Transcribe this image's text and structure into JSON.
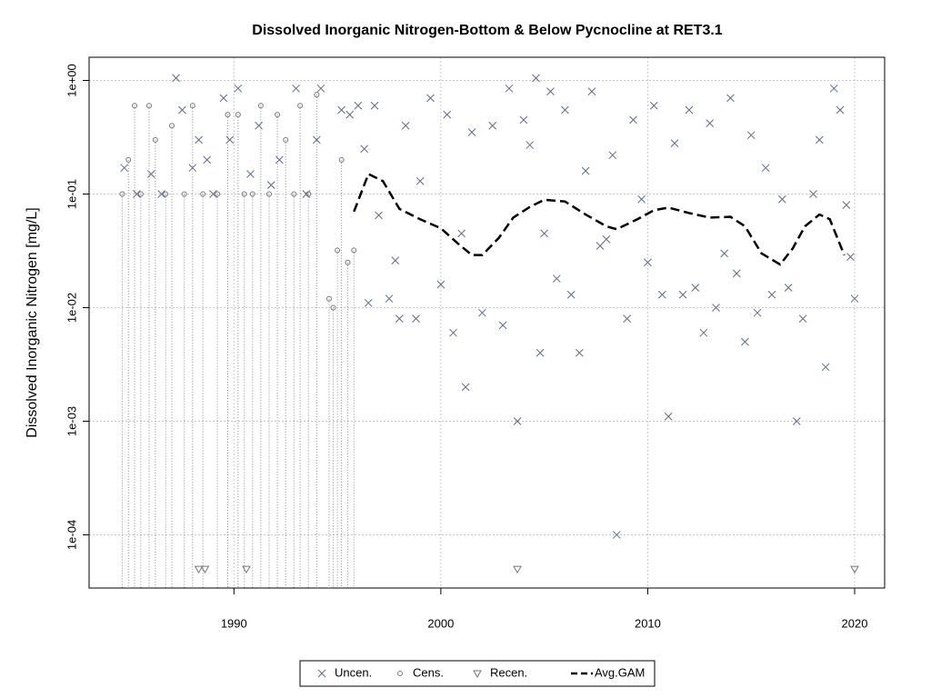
{
  "chart_data": {
    "type": "scatter",
    "title": "Dissolved Inorganic Nitrogen-Bottom & Below Pycnocline at RET3.1",
    "y_label": "Dissolved Inorganic Nitrogen [mg/L]",
    "xlim": [
      1983.0,
      2021.45
    ],
    "xticks": [
      1990,
      2000,
      2010,
      2020
    ],
    "ylim": [
      3.4e-05,
      1.6
    ],
    "log_y": true,
    "yticks": [
      {
        "value": 1,
        "label": "1e+00"
      },
      {
        "value": 0.1,
        "label": "1e-01"
      },
      {
        "value": 0.01,
        "label": "1e-02"
      },
      {
        "value": 0.001,
        "label": "1e-03"
      },
      {
        "value": 0.0001,
        "label": "1e-04"
      }
    ],
    "grid": true,
    "legend": "bottom",
    "series": [
      {
        "name": "Uncen.",
        "color": "#5f6b8c",
        "marker": "x",
        "x": [
          1984.7,
          1985.3,
          1986,
          1986.5,
          1987.2,
          1987.5,
          1988,
          1988.3,
          1988.7,
          1989,
          1989.5,
          1989.8,
          1990.2,
          1990.8,
          1991.2,
          1991.8,
          1992.2,
          1993,
          1993.5,
          1994,
          1994.2,
          1995.2,
          1995.6,
          1996,
          1996.3,
          1996.5,
          1996.8,
          1997,
          1997.5,
          1997.8,
          1998,
          1998.3,
          1998.8,
          1999,
          1999.5,
          2000,
          2000.3,
          2000.6,
          2001,
          2001.2,
          2001.5,
          2002,
          2002.5,
          2003,
          2003.3,
          2003.7,
          2004,
          2004.3,
          2004.6,
          2004.8,
          2005,
          2005.3,
          2005.6,
          2006,
          2006.3,
          2006.7,
          2007,
          2007.3,
          2007.7,
          2008,
          2008.3,
          2008.5,
          2009,
          2009.3,
          2009.7,
          2010,
          2010.3,
          2010.7,
          2011,
          2011.3,
          2011.7,
          2012,
          2012.3,
          2012.7,
          2013,
          2013.3,
          2013.7,
          2014,
          2014.3,
          2014.7,
          2015,
          2015.3,
          2015.7,
          2016,
          2016.5,
          2016.8,
          2017.2,
          2017.5,
          2018,
          2018.3,
          2018.6,
          2019,
          2019.3,
          2019.6,
          2019.8,
          2020
        ],
        "values": [
          0.17,
          0.1,
          0.15,
          0.1,
          1.05,
          0.55,
          0.17,
          0.3,
          0.2,
          0.1,
          0.7,
          0.3,
          0.85,
          0.15,
          0.4,
          0.12,
          0.2,
          0.85,
          0.1,
          0.3,
          0.85,
          0.55,
          0.5,
          0.6,
          0.25,
          0.011,
          0.6,
          0.065,
          0.012,
          0.026,
          0.008,
          0.4,
          0.008,
          0.13,
          0.7,
          0.016,
          0.5,
          0.006,
          0.045,
          0.002,
          0.35,
          0.009,
          0.4,
          0.007,
          0.85,
          0.001,
          0.45,
          0.27,
          1.05,
          0.004,
          0.045,
          0.8,
          0.018,
          0.55,
          0.013,
          0.004,
          0.16,
          0.8,
          0.035,
          0.04,
          0.22,
          0.0001,
          0.008,
          0.45,
          0.09,
          0.025,
          0.6,
          0.013,
          0.0011,
          0.28,
          0.013,
          0.55,
          0.015,
          0.006,
          0.42,
          0.01,
          0.03,
          0.7,
          0.02,
          0.005,
          0.33,
          0.009,
          0.17,
          0.013,
          0.09,
          0.015,
          0.001,
          0.008,
          0.1,
          0.3,
          0.003,
          0.85,
          0.55,
          0.08,
          0.028,
          0.012
        ]
      },
      {
        "name": "Cens.",
        "color": "#777777",
        "marker": "o",
        "x": [
          1984.6,
          1984.9,
          1985.2,
          1985.5,
          1985.9,
          1986.2,
          1986.7,
          1987,
          1987.6,
          1988,
          1988.5,
          1989.2,
          1989.7,
          1990.2,
          1990.5,
          1990.9,
          1991.3,
          1991.7,
          1992.1,
          1992.5,
          1992.9,
          1993.2,
          1993.6,
          1994,
          1994.6,
          1994.8,
          1995,
          1995.2,
          1995.5,
          1995.8
        ],
        "values": [
          0.1,
          0.2,
          0.6,
          0.1,
          0.6,
          0.3,
          0.1,
          0.4,
          0.1,
          0.6,
          0.1,
          0.1,
          0.5,
          0.5,
          0.1,
          0.1,
          0.6,
          0.1,
          0.5,
          0.3,
          0.1,
          0.6,
          0.1,
          0.75,
          0.012,
          0.01,
          0.032,
          0.2,
          0.025,
          0.032
        ]
      },
      {
        "name": "Recen.",
        "color": "#777777",
        "marker": "triangle",
        "x": [
          1988.3,
          1988.6,
          1990.6,
          2003.7,
          2020
        ],
        "values": [
          5e-05,
          5e-05,
          5e-05,
          5e-05,
          5e-05
        ]
      },
      {
        "name": "Avg.GAM",
        "color": "#000000",
        "marker": "dash",
        "x": [
          1995.8,
          1996.5,
          1997.2,
          1998,
          1999,
          2000,
          2000.8,
          2001.5,
          2002,
          2002.8,
          2003.5,
          2004.3,
          2005,
          2006,
          2007,
          2008,
          2008.5,
          2009.5,
          2010.3,
          2011,
          2012,
          2013,
          2014,
          2014.7,
          2015.5,
          2016.4,
          2017,
          2017.6,
          2018.3,
          2018.8,
          2019.5
        ],
        "values": [
          0.07,
          0.15,
          0.13,
          0.074,
          0.06,
          0.05,
          0.037,
          0.029,
          0.029,
          0.041,
          0.062,
          0.077,
          0.089,
          0.086,
          0.066,
          0.052,
          0.049,
          0.06,
          0.072,
          0.076,
          0.068,
          0.062,
          0.063,
          0.052,
          0.03,
          0.024,
          0.033,
          0.052,
          0.066,
          0.06,
          0.029
        ]
      }
    ]
  }
}
